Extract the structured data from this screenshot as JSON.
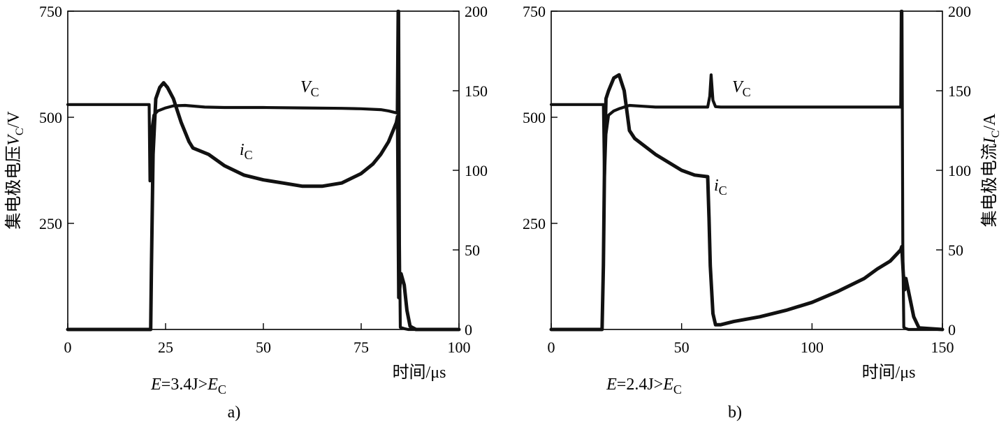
{
  "chart_data": [
    {
      "type": "line",
      "panel_label": "a)",
      "condition": {
        "E": "E",
        "eq": "=3.4J>",
        "Ec": "E",
        "Ec_sub": "C"
      },
      "xlabel": "时间/μs",
      "ylabel_left": {
        "pre": "集电极电压",
        "v": "V",
        "sub": "C",
        "post": "/V"
      },
      "xlim": [
        0,
        100
      ],
      "xticks": [
        "0",
        "25",
        "50",
        "75",
        "100"
      ],
      "y_left_lim": [
        0,
        750
      ],
      "y_left_ticks": [
        "250",
        "500",
        "750"
      ],
      "y_right_lim": [
        0,
        200
      ],
      "y_right_ticks": [
        "0",
        "50",
        "100",
        "150",
        "200"
      ],
      "series": [
        {
          "name": "VC",
          "label_main": "V",
          "label_sub": "C",
          "axis": "left",
          "x": [
            0,
            20.8,
            21.0,
            21.3,
            22,
            23,
            25,
            27,
            30,
            35,
            40,
            50,
            60,
            70,
            75,
            80,
            82,
            84.2,
            84.4,
            84.6,
            84.8,
            85,
            86,
            87,
            88,
            90,
            95,
            100
          ],
          "y": [
            530,
            530,
            350,
            460,
            505,
            515,
            522,
            527,
            528,
            524,
            523,
            523,
            522,
            521,
            520,
            518,
            515,
            510,
            750,
            750,
            200,
            5,
            2,
            0,
            0,
            0,
            0,
            0
          ]
        },
        {
          "name": "iC",
          "label_main": "i",
          "label_sub": "C",
          "axis": "right",
          "x": [
            0,
            20,
            21.2,
            21.4,
            21.8,
            22.5,
            23.5,
            24.5,
            25.5,
            27,
            29,
            31,
            32,
            36,
            40,
            45,
            50,
            55,
            60,
            65,
            70,
            75,
            78,
            80,
            82,
            84,
            84.3,
            84.6,
            85.2,
            86,
            86.7,
            87.5,
            89,
            100
          ],
          "y": [
            0,
            0,
            0,
            40,
            110,
            145,
            152,
            155,
            152,
            145,
            130,
            118,
            114,
            110,
            103,
            97,
            94,
            92,
            90,
            90,
            92,
            98,
            104,
            110,
            118,
            130,
            134,
            20,
            35,
            28,
            12,
            2,
            0,
            0
          ]
        }
      ]
    },
    {
      "type": "line",
      "panel_label": "b)",
      "condition": {
        "E": "E",
        "eq": "=2.4J>",
        "Ec": "E",
        "Ec_sub": "C"
      },
      "xlabel": "时间/μs",
      "ylabel_right": {
        "pre": "集电极电流",
        "v": "I",
        "sub": "C",
        "post": "/A"
      },
      "xlim": [
        0,
        150
      ],
      "xticks": [
        "0",
        "50",
        "100",
        "150"
      ],
      "y_left_lim": [
        0,
        750
      ],
      "y_left_ticks": [
        "250",
        "500",
        "750"
      ],
      "y_right_lim": [
        0,
        200
      ],
      "y_right_ticks": [
        "0",
        "50",
        "100",
        "150",
        "200"
      ],
      "series": [
        {
          "name": "VC",
          "label_main": "V",
          "label_sub": "C",
          "axis": "left",
          "x": [
            0,
            20,
            20.4,
            21,
            22,
            24,
            26,
            28,
            30,
            35,
            40,
            50,
            60,
            60.8,
            61.3,
            62,
            63,
            65,
            80,
            100,
            120,
            134,
            134.2,
            134.5,
            134.8,
            135.2,
            136,
            137,
            140,
            150
          ],
          "y": [
            530,
            530,
            350,
            460,
            505,
            515,
            520,
            524,
            528,
            526,
            524,
            524,
            524,
            550,
            600,
            540,
            525,
            524,
            524,
            524,
            524,
            524,
            750,
            750,
            200,
            5,
            2,
            0,
            0,
            0
          ],
          "y_note": "V"
        },
        {
          "name": "iC",
          "label_main": "i",
          "label_sub": "C",
          "axis": "right",
          "x": [
            0,
            19.5,
            20,
            20.5,
            21,
            22,
            24,
            26,
            28,
            30,
            32,
            40,
            50,
            55,
            60,
            60.5,
            61,
            62,
            63,
            65,
            70,
            80,
            90,
            100,
            110,
            120,
            125,
            130,
            134,
            134.4,
            135,
            135.5,
            136,
            137.5,
            139,
            141,
            150
          ],
          "y": [
            0,
            0,
            40,
            110,
            145,
            150,
            158,
            160,
            150,
            125,
            120,
            110,
            100,
            97,
            96,
            70,
            40,
            10,
            3,
            3,
            5,
            8,
            12,
            17,
            24,
            32,
            38,
            43,
            50,
            52,
            35,
            25,
            32,
            20,
            8,
            1,
            0
          ]
        }
      ]
    }
  ]
}
